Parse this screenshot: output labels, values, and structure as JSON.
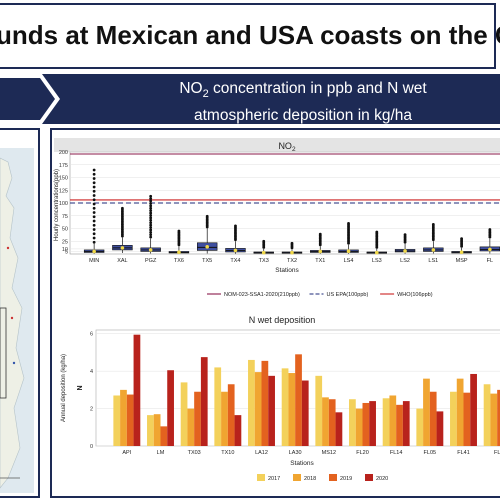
{
  "header": {
    "title": "unds at Mexican and USA coasts on the G",
    "band_line1_prefix": "NO",
    "band_line1_sub": "2",
    "band_line1_suffix": " concentration in ppb and N wet",
    "band_line2": "atmospheric deposition in kg/ha"
  },
  "colors": {
    "navy": "#1d2a55",
    "box_fill": "#3f4fa0",
    "mean_dot": "#f0d84a",
    "nom_line": "#8a1a4a",
    "epa_line": "#1d2a7a",
    "who_line": "#cc2222"
  },
  "map": {
    "icon": "map-thumbnail"
  },
  "chart_data": [
    {
      "type": "box",
      "title_prefix": "NO",
      "title_sub": "2",
      "xlabel": "Stations",
      "ylabel": "Hourly concentrations(ppb)",
      "ylim": [
        0,
        200
      ],
      "yticks": [
        5,
        10,
        25,
        50,
        75,
        100,
        125,
        150,
        175,
        200
      ],
      "categories": [
        "MIN",
        "XAL",
        "PGZ",
        "TX6",
        "TX5",
        "TX4",
        "TX3",
        "TX2",
        "TX1",
        "LS4",
        "LS3",
        "LS2",
        "LS1",
        "MSP",
        "FL"
      ],
      "boxes": [
        {
          "min": 0.5,
          "q1": 3,
          "median": 5,
          "q3": 8,
          "max": 20,
          "mean": 5,
          "outlier_max": 170
        },
        {
          "min": 2,
          "q1": 8,
          "median": 12,
          "q3": 17,
          "max": 32,
          "mean": 12,
          "outlier_max": 90
        },
        {
          "min": 1,
          "q1": 5,
          "median": 8,
          "q3": 12,
          "max": 30,
          "mean": 8,
          "outlier_max": 115
        },
        {
          "min": 0.5,
          "q1": 2,
          "median": 3,
          "q3": 5,
          "max": 15,
          "mean": 3.5,
          "outlier_max": 45
        },
        {
          "min": 1,
          "q1": 7,
          "median": 13,
          "q3": 22,
          "max": 50,
          "mean": 14,
          "outlier_max": 75
        },
        {
          "min": 0.5,
          "q1": 4,
          "median": 7,
          "q3": 11,
          "max": 25,
          "mean": 7,
          "outlier_max": 55
        },
        {
          "min": 0.5,
          "q1": 1.5,
          "median": 2.5,
          "q3": 4,
          "max": 10,
          "mean": 2.5,
          "outlier_max": 25
        },
        {
          "min": 0.5,
          "q1": 1.5,
          "median": 2.5,
          "q3": 4,
          "max": 9,
          "mean": 2.5,
          "outlier_max": 22
        },
        {
          "min": 0.5,
          "q1": 3,
          "median": 5,
          "q3": 7,
          "max": 15,
          "mean": 5,
          "outlier_max": 40
        },
        {
          "min": 0.5,
          "q1": 3,
          "median": 5,
          "q3": 8,
          "max": 18,
          "mean": 5.5,
          "outlier_max": 60
        },
        {
          "min": 0.5,
          "q1": 1.5,
          "median": 2.5,
          "q3": 4,
          "max": 10,
          "mean": 2.5,
          "outlier_max": 45
        },
        {
          "min": 0.5,
          "q1": 4,
          "median": 6,
          "q3": 9,
          "max": 20,
          "mean": 6,
          "outlier_max": 40
        },
        {
          "min": 1,
          "q1": 5,
          "median": 8,
          "q3": 12,
          "max": 25,
          "mean": 8,
          "outlier_max": 60
        },
        {
          "min": 0.5,
          "q1": 2,
          "median": 3.5,
          "q3": 5,
          "max": 12,
          "mean": 3.5,
          "outlier_max": 30
        },
        {
          "min": 1,
          "q1": 6,
          "median": 9,
          "q3": 14,
          "max": 30,
          "mean": 9,
          "outlier_max": 50
        }
      ],
      "reference_lines": [
        {
          "name": "NOM-023-SSA1-2020(210ppb)",
          "value": 210,
          "color": "#8a1a4a",
          "style": "solid"
        },
        {
          "name": "US EPA(100ppb)",
          "value": 100,
          "color": "#1d2a7a",
          "style": "dashed"
        },
        {
          "name": "WHO(106ppb)",
          "value": 106,
          "color": "#cc2222",
          "style": "solid"
        }
      ],
      "legend_position": "bottom",
      "grid": true
    },
    {
      "type": "bar",
      "title": "N wet deposition",
      "xlabel": "Stations",
      "ylabel": "Annual deposition (kg/ha)",
      "y_side_label": "N",
      "ylim": [
        0,
        6.2
      ],
      "yticks": [
        0,
        2,
        4,
        6
      ],
      "categories": [
        "API",
        "LM",
        "TX03",
        "TX10",
        "LA12",
        "LA30",
        "MS12",
        "FL20",
        "FL14",
        "FL05",
        "FL41",
        "FL"
      ],
      "series": [
        {
          "name": "2017",
          "color": "#f3d15b",
          "values": [
            2.7,
            1.65,
            3.4,
            4.2,
            4.6,
            4.15,
            3.75,
            2.5,
            2.55,
            2.0,
            2.9,
            3.3
          ]
        },
        {
          "name": "2018",
          "color": "#f0a531",
          "values": [
            3.0,
            1.7,
            2.0,
            2.9,
            3.95,
            3.9,
            2.6,
            2.0,
            2.7,
            3.6,
            3.6,
            2.8
          ]
        },
        {
          "name": "2019",
          "color": "#e3621f",
          "values": [
            2.75,
            1.05,
            2.9,
            3.3,
            4.55,
            4.9,
            2.5,
            2.3,
            2.2,
            2.9,
            2.85,
            3.0
          ]
        },
        {
          "name": "2020",
          "color": "#b8221c",
          "values": [
            5.95,
            4.05,
            4.75,
            1.65,
            3.75,
            3.5,
            1.8,
            2.4,
            2.4,
            1.85,
            3.85,
            3.1
          ]
        }
      ],
      "legend_position": "bottom",
      "grid": true
    }
  ]
}
